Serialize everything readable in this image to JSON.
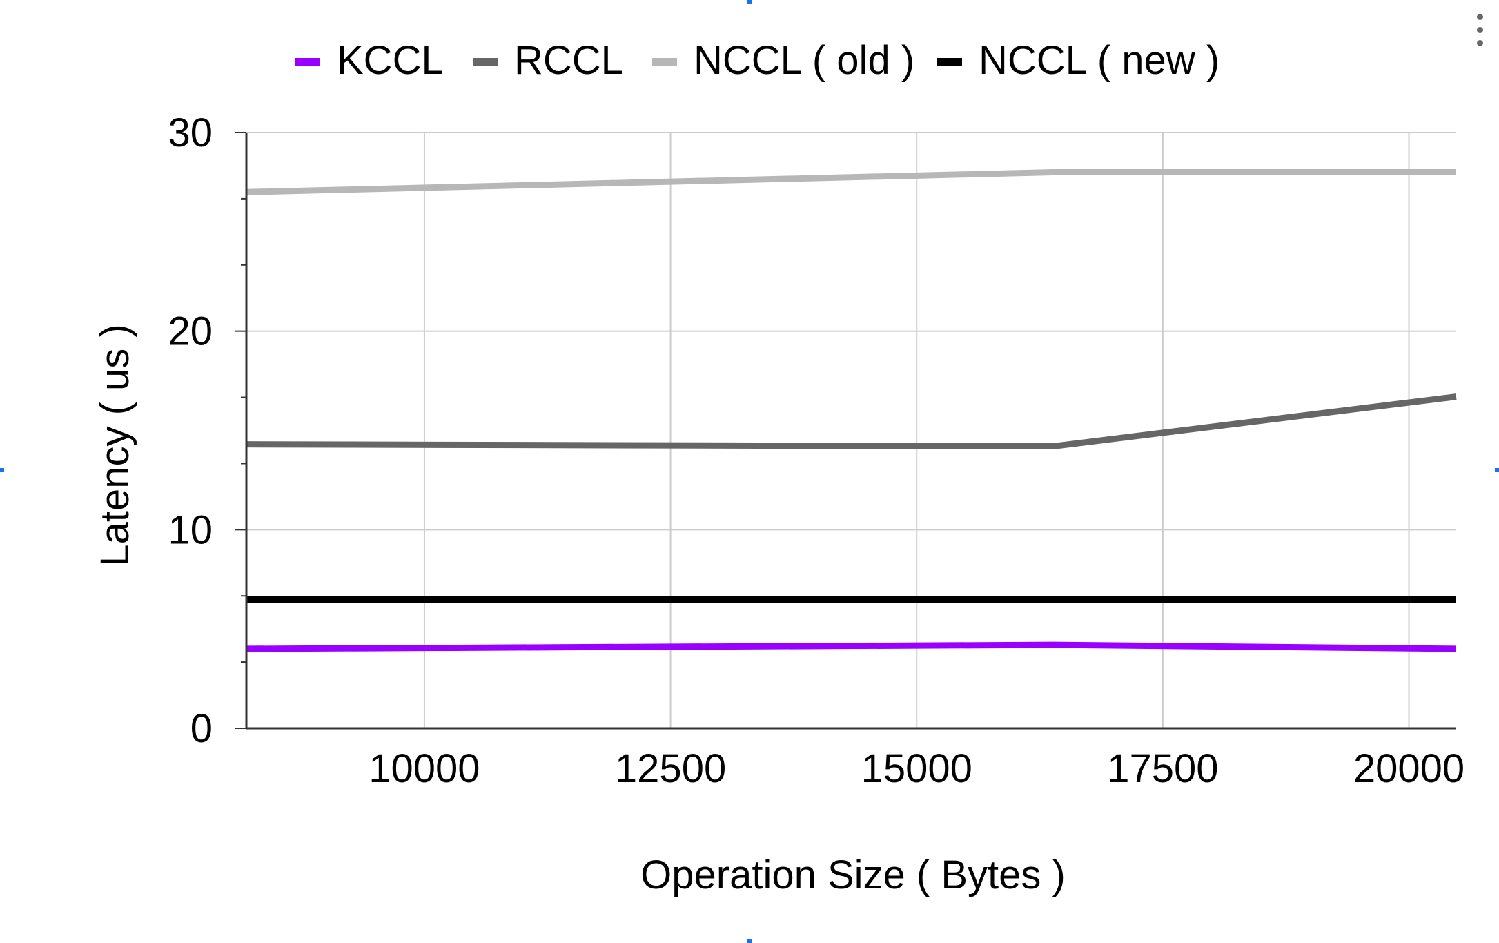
{
  "chart_data": {
    "type": "line",
    "title": "",
    "xlabel": "Operation Size ( Bytes )",
    "ylabel": "Latency ( us )",
    "xlim": [
      8192,
      20480
    ],
    "ylim": [
      0,
      30
    ],
    "xticks": [
      10000,
      12500,
      15000,
      17500,
      20000
    ],
    "xtick_labels": [
      "10000",
      "12500",
      "15000",
      "17500",
      "20000"
    ],
    "yticks": [
      0,
      10,
      20,
      30
    ],
    "ytick_labels": [
      "0",
      "10",
      "20",
      "30"
    ],
    "grid": true,
    "legend_position": "top",
    "x": [
      8192,
      16384,
      20480
    ],
    "series": [
      {
        "name": "KCCL",
        "color": "#9900ff",
        "values": [
          4.0,
          4.2,
          4.0
        ]
      },
      {
        "name": "RCCL",
        "color": "#666666",
        "values": [
          14.3,
          14.2,
          16.7
        ]
      },
      {
        "name": "NCCL ( old )",
        "color": "#b7b7b7",
        "values": [
          27.0,
          28.0,
          28.0
        ]
      },
      {
        "name": "NCCL ( new )",
        "color": "#000000",
        "values": [
          6.5,
          6.5,
          6.5
        ]
      }
    ]
  },
  "menu": {
    "icon": "more-vert-icon"
  }
}
